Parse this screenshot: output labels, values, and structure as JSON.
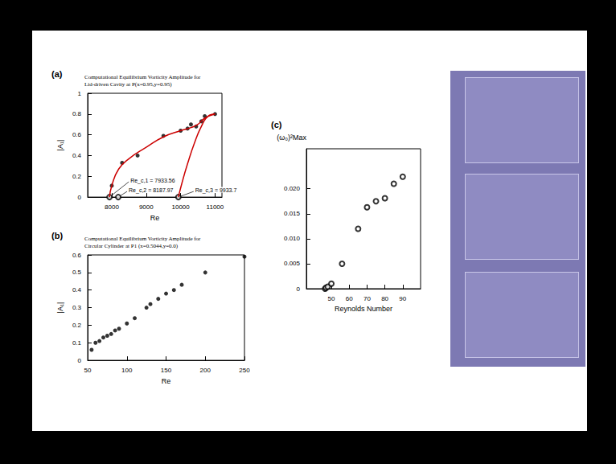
{
  "chart_data": [
    {
      "panel": "(a)",
      "type": "scatter",
      "title": "Computational Equilibrium Vorticity Amplitude for Lid-driven Cavity at P(x=0.95,y=0.95)",
      "x_label": "Re",
      "y_label": "|A₁|",
      "xlim": [
        7300,
        11200
      ],
      "xticks": [
        8000,
        9000,
        10000,
        11000
      ],
      "ylim": [
        0,
        1
      ],
      "yticks": [
        0,
        0.2,
        0.4,
        0.6,
        0.8,
        1
      ],
      "grid": false,
      "series": [
        {
          "type": "line",
          "color": "#cc0000",
          "marker": "none",
          "line_style": "solid",
          "x": [
            7933.56,
            8000,
            8200,
            8500,
            9000,
            9500,
            10000,
            10300,
            10500,
            10700,
            11000
          ],
          "values": [
            0,
            0.11,
            0.27,
            0.37,
            0.48,
            0.58,
            0.64,
            0.67,
            0.7,
            0.76,
            0.8
          ]
        },
        {
          "type": "line",
          "color": "#cc0000",
          "marker": "none",
          "line_style": "solid",
          "x": [
            9933.7,
            10050,
            10200,
            10400,
            10600,
            10800,
            11000
          ],
          "values": [
            0,
            0.15,
            0.32,
            0.52,
            0.68,
            0.78,
            0.8
          ]
        },
        {
          "type": "scatter",
          "color": "#000000",
          "marker": "circle",
          "x": [
            8000,
            8300,
            8750,
            9500,
            10000,
            10200,
            10300,
            10450,
            10600,
            10700,
            11000
          ],
          "values": [
            0.11,
            0.33,
            0.4,
            0.59,
            0.64,
            0.66,
            0.7,
            0.68,
            0.73,
            0.78,
            0.8
          ]
        },
        {
          "type": "scatter",
          "color": "#000000",
          "marker": "open_circle",
          "x": [
            7933.56,
            8187.97,
            9933.7
          ],
          "values": [
            0,
            0,
            0
          ]
        }
      ],
      "annotations": [
        {
          "text": "Re_c,1 = 7933.56",
          "x": 7933.56,
          "y": 0
        },
        {
          "text": "Re_c,2 = 8187.97",
          "x": 8187.97,
          "y": 0
        },
        {
          "text": "Re_c,3 = 9933.7",
          "x": 9933.7,
          "y": 0
        }
      ]
    },
    {
      "panel": "(b)",
      "type": "scatter",
      "title": "Computational Equilibrium Vorticity Amplitude for Circular Cylinder at P1 (x=0.5044,y=0.0)",
      "x_label": "Re",
      "y_label": "|A₁|",
      "xlim": [
        50,
        250
      ],
      "xticks": [
        50,
        100,
        150,
        200,
        250
      ],
      "ylim": [
        0,
        0.6
      ],
      "yticks": [
        0,
        0.1,
        0.2,
        0.3,
        0.4,
        0.5,
        0.6
      ],
      "grid": false,
      "series": [
        {
          "type": "scatter",
          "color": "#000000",
          "marker": "circle",
          "x": [
            55,
            60,
            65,
            70,
            75,
            80,
            85,
            90,
            100,
            110,
            125,
            130,
            140,
            150,
            160,
            170,
            200,
            250
          ],
          "values": [
            0.06,
            0.1,
            0.11,
            0.13,
            0.14,
            0.15,
            0.17,
            0.18,
            0.21,
            0.24,
            0.3,
            0.32,
            0.35,
            0.38,
            0.4,
            0.43,
            0.5,
            0.59
          ]
        }
      ]
    },
    {
      "panel": "(c)",
      "type": "scatter",
      "x_label": "Reynolds Number",
      "y_label": "(ω₀)²Max",
      "xlim": [
        36,
        100
      ],
      "xticks": [
        50,
        60,
        70,
        80,
        90
      ],
      "ylim": [
        0,
        0.028
      ],
      "yticks": [
        0,
        0.005,
        {
          "value": 0.01,
          "label": "0.010"
        },
        0.015,
        {
          "value": 0.02,
          "label": "0.020"
        }
      ],
      "grid": false,
      "series": [
        {
          "type": "scatter",
          "color": "#000000",
          "marker": "open_circle",
          "x": [
            46.5,
            47,
            48,
            50,
            56,
            65,
            70,
            75,
            80,
            85,
            90
          ],
          "values": [
            0,
            0.0002,
            0.0004,
            0.001,
            0.005,
            0.012,
            0.0163,
            0.0175,
            0.0181,
            0.021,
            0.0224
          ]
        }
      ]
    }
  ]
}
